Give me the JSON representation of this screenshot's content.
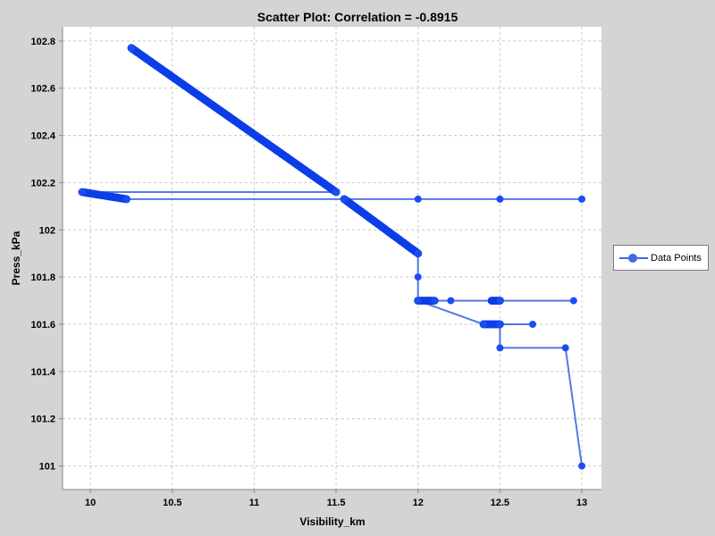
{
  "chart_data": {
    "type": "line",
    "title": "Scatter Plot: Correlation = -0.8915",
    "xlabel": "Visibility_km",
    "ylabel": "Press_kPa",
    "xlim": [
      9.83,
      13.12
    ],
    "ylim": [
      100.9,
      102.86
    ],
    "x_ticks": [
      10,
      10.5,
      11,
      11.5,
      12,
      12.5,
      13
    ],
    "x_tick_labels": [
      "10",
      "10.5",
      "11",
      "11.5",
      "12",
      "12.5",
      "13"
    ],
    "y_ticks": [
      101,
      101.2,
      101.4,
      101.6,
      101.8,
      102,
      102.2,
      102.4,
      102.6,
      102.8
    ],
    "y_tick_labels": [
      "101",
      "101.2",
      "101.4",
      "101.6",
      "101.8",
      "102",
      "102.2",
      "102.4",
      "102.6",
      "102.8"
    ],
    "grid": true,
    "legend_position": "right",
    "series": [
      {
        "name": "Data Points",
        "color": "#4169e1",
        "x": [
          10.25,
          11.5,
          9.95,
          10.22,
          13.0,
          12.5,
          12.0,
          11.55,
          12.0,
          12.0,
          12.0,
          12.1,
          12.2,
          12.5,
          12.95,
          12.5,
          12.1,
          12.0,
          12.4,
          12.5,
          12.7,
          12.5,
          12.5,
          12.9,
          13.0
        ],
        "y": [
          102.77,
          102.16,
          102.16,
          102.13,
          102.13,
          102.13,
          102.13,
          102.13,
          101.9,
          101.8,
          101.7,
          101.7,
          101.7,
          101.7,
          101.7,
          101.7,
          101.7,
          101.7,
          101.6,
          101.6,
          101.6,
          101.6,
          101.5,
          101.5,
          101.0
        ]
      }
    ],
    "dense_runs": [
      {
        "x": [
          10.25,
          11.5
        ],
        "y": [
          102.77,
          102.16
        ]
      },
      {
        "x": [
          9.95,
          10.22
        ],
        "y": [
          102.16,
          102.13
        ]
      },
      {
        "x": [
          11.55,
          12.0
        ],
        "y": [
          102.13,
          101.9
        ]
      },
      {
        "x": [
          12.0,
          12.1
        ],
        "y": [
          101.7,
          101.7
        ]
      },
      {
        "x": [
          12.45,
          12.5
        ],
        "y": [
          101.7,
          101.7
        ]
      },
      {
        "x": [
          12.4,
          12.5
        ],
        "y": [
          101.6,
          101.6
        ]
      }
    ]
  },
  "legend": {
    "label": "Data Points"
  }
}
